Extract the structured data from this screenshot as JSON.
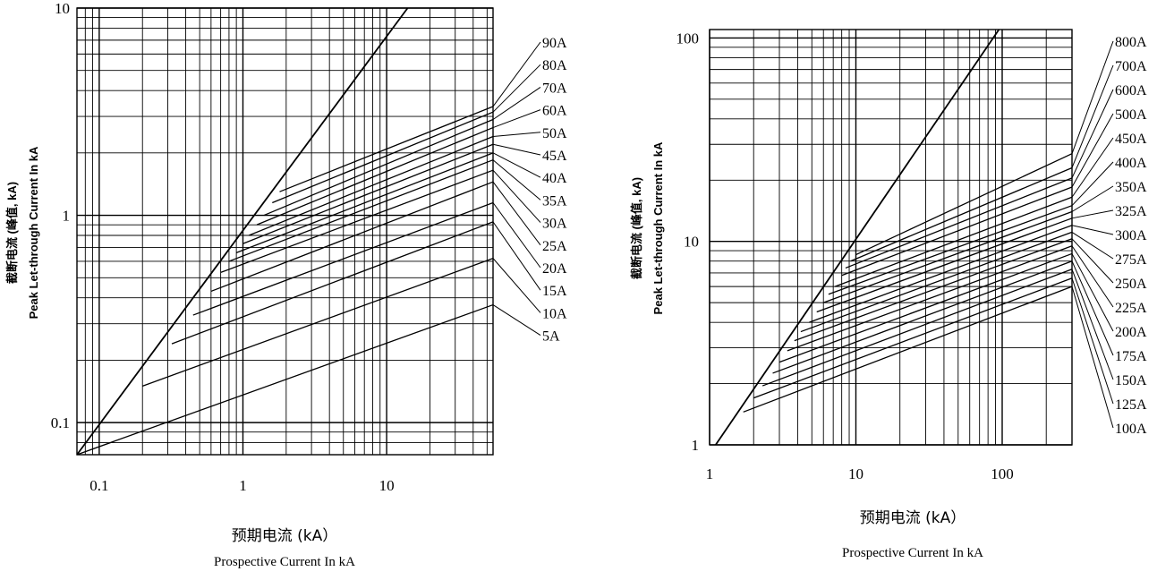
{
  "charts": [
    {
      "type": "line",
      "scale": "log-log",
      "xlabel_cn": "预期电流 (kA）",
      "xlabel_en": "Prospective Current In kA",
      "ylabel_cn": "截断电流 (峰值, kA)",
      "ylabel_en": "Peak Let-through Current In kA",
      "xlim": [
        0.07,
        55
      ],
      "ylim": [
        0.07,
        10
      ],
      "x_ticks": [
        "0.1",
        "1",
        "10"
      ],
      "x_tick_values": [
        0.1,
        1,
        10
      ],
      "y_ticks": [
        "0.1",
        "1",
        "10"
      ],
      "y_tick_values": [
        0.1,
        1,
        10
      ],
      "limit_line": {
        "from": [
          0.07,
          0.07
        ],
        "to": [
          14,
          10
        ]
      },
      "series": [
        {
          "name": "5A",
          "start": [
            0.07,
            0.07
          ],
          "end": [
            55,
            0.37
          ]
        },
        {
          "name": "10A",
          "start": [
            0.2,
            0.15
          ],
          "end": [
            55,
            0.62
          ]
        },
        {
          "name": "15A",
          "start": [
            0.32,
            0.24
          ],
          "end": [
            55,
            0.93
          ]
        },
        {
          "name": "20A",
          "start": [
            0.45,
            0.33
          ],
          "end": [
            55,
            1.15
          ]
        },
        {
          "name": "25A",
          "start": [
            0.6,
            0.43
          ],
          "end": [
            55,
            1.45
          ]
        },
        {
          "name": "30A",
          "start": [
            0.7,
            0.53
          ],
          "end": [
            55,
            1.65
          ]
        },
        {
          "name": "35A",
          "start": [
            0.8,
            0.6
          ],
          "end": [
            55,
            1.85
          ]
        },
        {
          "name": "40A",
          "start": [
            0.9,
            0.66
          ],
          "end": [
            55,
            2.0
          ]
        },
        {
          "name": "45A",
          "start": [
            1.0,
            0.73
          ],
          "end": [
            55,
            2.2
          ]
        },
        {
          "name": "50A",
          "start": [
            1.1,
            0.8
          ],
          "end": [
            55,
            2.4
          ]
        },
        {
          "name": "60A",
          "start": [
            1.25,
            0.9
          ],
          "end": [
            55,
            2.65
          ]
        },
        {
          "name": "70A",
          "start": [
            1.4,
            1.0
          ],
          "end": [
            55,
            2.9
          ]
        },
        {
          "name": "80A",
          "start": [
            1.6,
            1.15
          ],
          "end": [
            55,
            3.15
          ]
        },
        {
          "name": "90A",
          "start": [
            1.8,
            1.3
          ],
          "end": [
            55,
            3.35
          ]
        }
      ]
    },
    {
      "type": "line",
      "scale": "log-log",
      "xlabel_cn": "预期电流 (kA）",
      "xlabel_en": "Prospective Current In kA",
      "ylabel_cn": "截断电流 (峰值, kA)",
      "ylabel_en": "Peak Let-through Current In kA",
      "xlim": [
        1,
        300
      ],
      "ylim": [
        1,
        110
      ],
      "x_ticks": [
        "1",
        "10",
        "100"
      ],
      "x_tick_values": [
        1,
        10,
        100
      ],
      "y_ticks": [
        "1",
        "10",
        "100"
      ],
      "y_tick_values": [
        1,
        10,
        100
      ],
      "limit_line": {
        "from": [
          1.1,
          1.0
        ],
        "to": [
          95,
          110
        ]
      },
      "series": [
        {
          "name": "100A",
          "start": [
            1.7,
            1.45
          ],
          "end": [
            300,
            6.0
          ]
        },
        {
          "name": "125A",
          "start": [
            2.0,
            1.7
          ],
          "end": [
            300,
            6.6
          ]
        },
        {
          "name": "150A",
          "start": [
            2.3,
            1.95
          ],
          "end": [
            300,
            7.3
          ]
        },
        {
          "name": "175A",
          "start": [
            2.7,
            2.25
          ],
          "end": [
            300,
            8.0
          ]
        },
        {
          "name": "200A",
          "start": [
            3.0,
            2.55
          ],
          "end": [
            300,
            8.7
          ]
        },
        {
          "name": "225A",
          "start": [
            3.4,
            2.9
          ],
          "end": [
            300,
            9.5
          ]
        },
        {
          "name": "250A",
          "start": [
            3.8,
            3.25
          ],
          "end": [
            300,
            10.3
          ]
        },
        {
          "name": "275A",
          "start": [
            4.2,
            3.6
          ],
          "end": [
            300,
            11.1
          ]
        },
        {
          "name": "300A",
          "start": [
            4.8,
            4.0
          ],
          "end": [
            300,
            12.0
          ]
        },
        {
          "name": "325A",
          "start": [
            5.4,
            4.5
          ],
          "end": [
            300,
            13.0
          ]
        },
        {
          "name": "350A",
          "start": [
            6.0,
            5.0
          ],
          "end": [
            300,
            14.0
          ]
        },
        {
          "name": "400A",
          "start": [
            6.5,
            5.5
          ],
          "end": [
            300,
            15.0
          ]
        },
        {
          "name": "450A",
          "start": [
            7.2,
            6.0
          ],
          "end": [
            300,
            16.5
          ]
        },
        {
          "name": "500A",
          "start": [
            8.0,
            6.8
          ],
          "end": [
            300,
            18.5
          ]
        },
        {
          "name": "600A",
          "start": [
            8.5,
            7.4
          ],
          "end": [
            300,
            20.5
          ]
        },
        {
          "name": "700A",
          "start": [
            9.2,
            8.0
          ],
          "end": [
            300,
            23.0
          ]
        },
        {
          "name": "800A",
          "start": [
            10.0,
            8.6
          ],
          "end": [
            300,
            27.0
          ]
        }
      ]
    }
  ]
}
